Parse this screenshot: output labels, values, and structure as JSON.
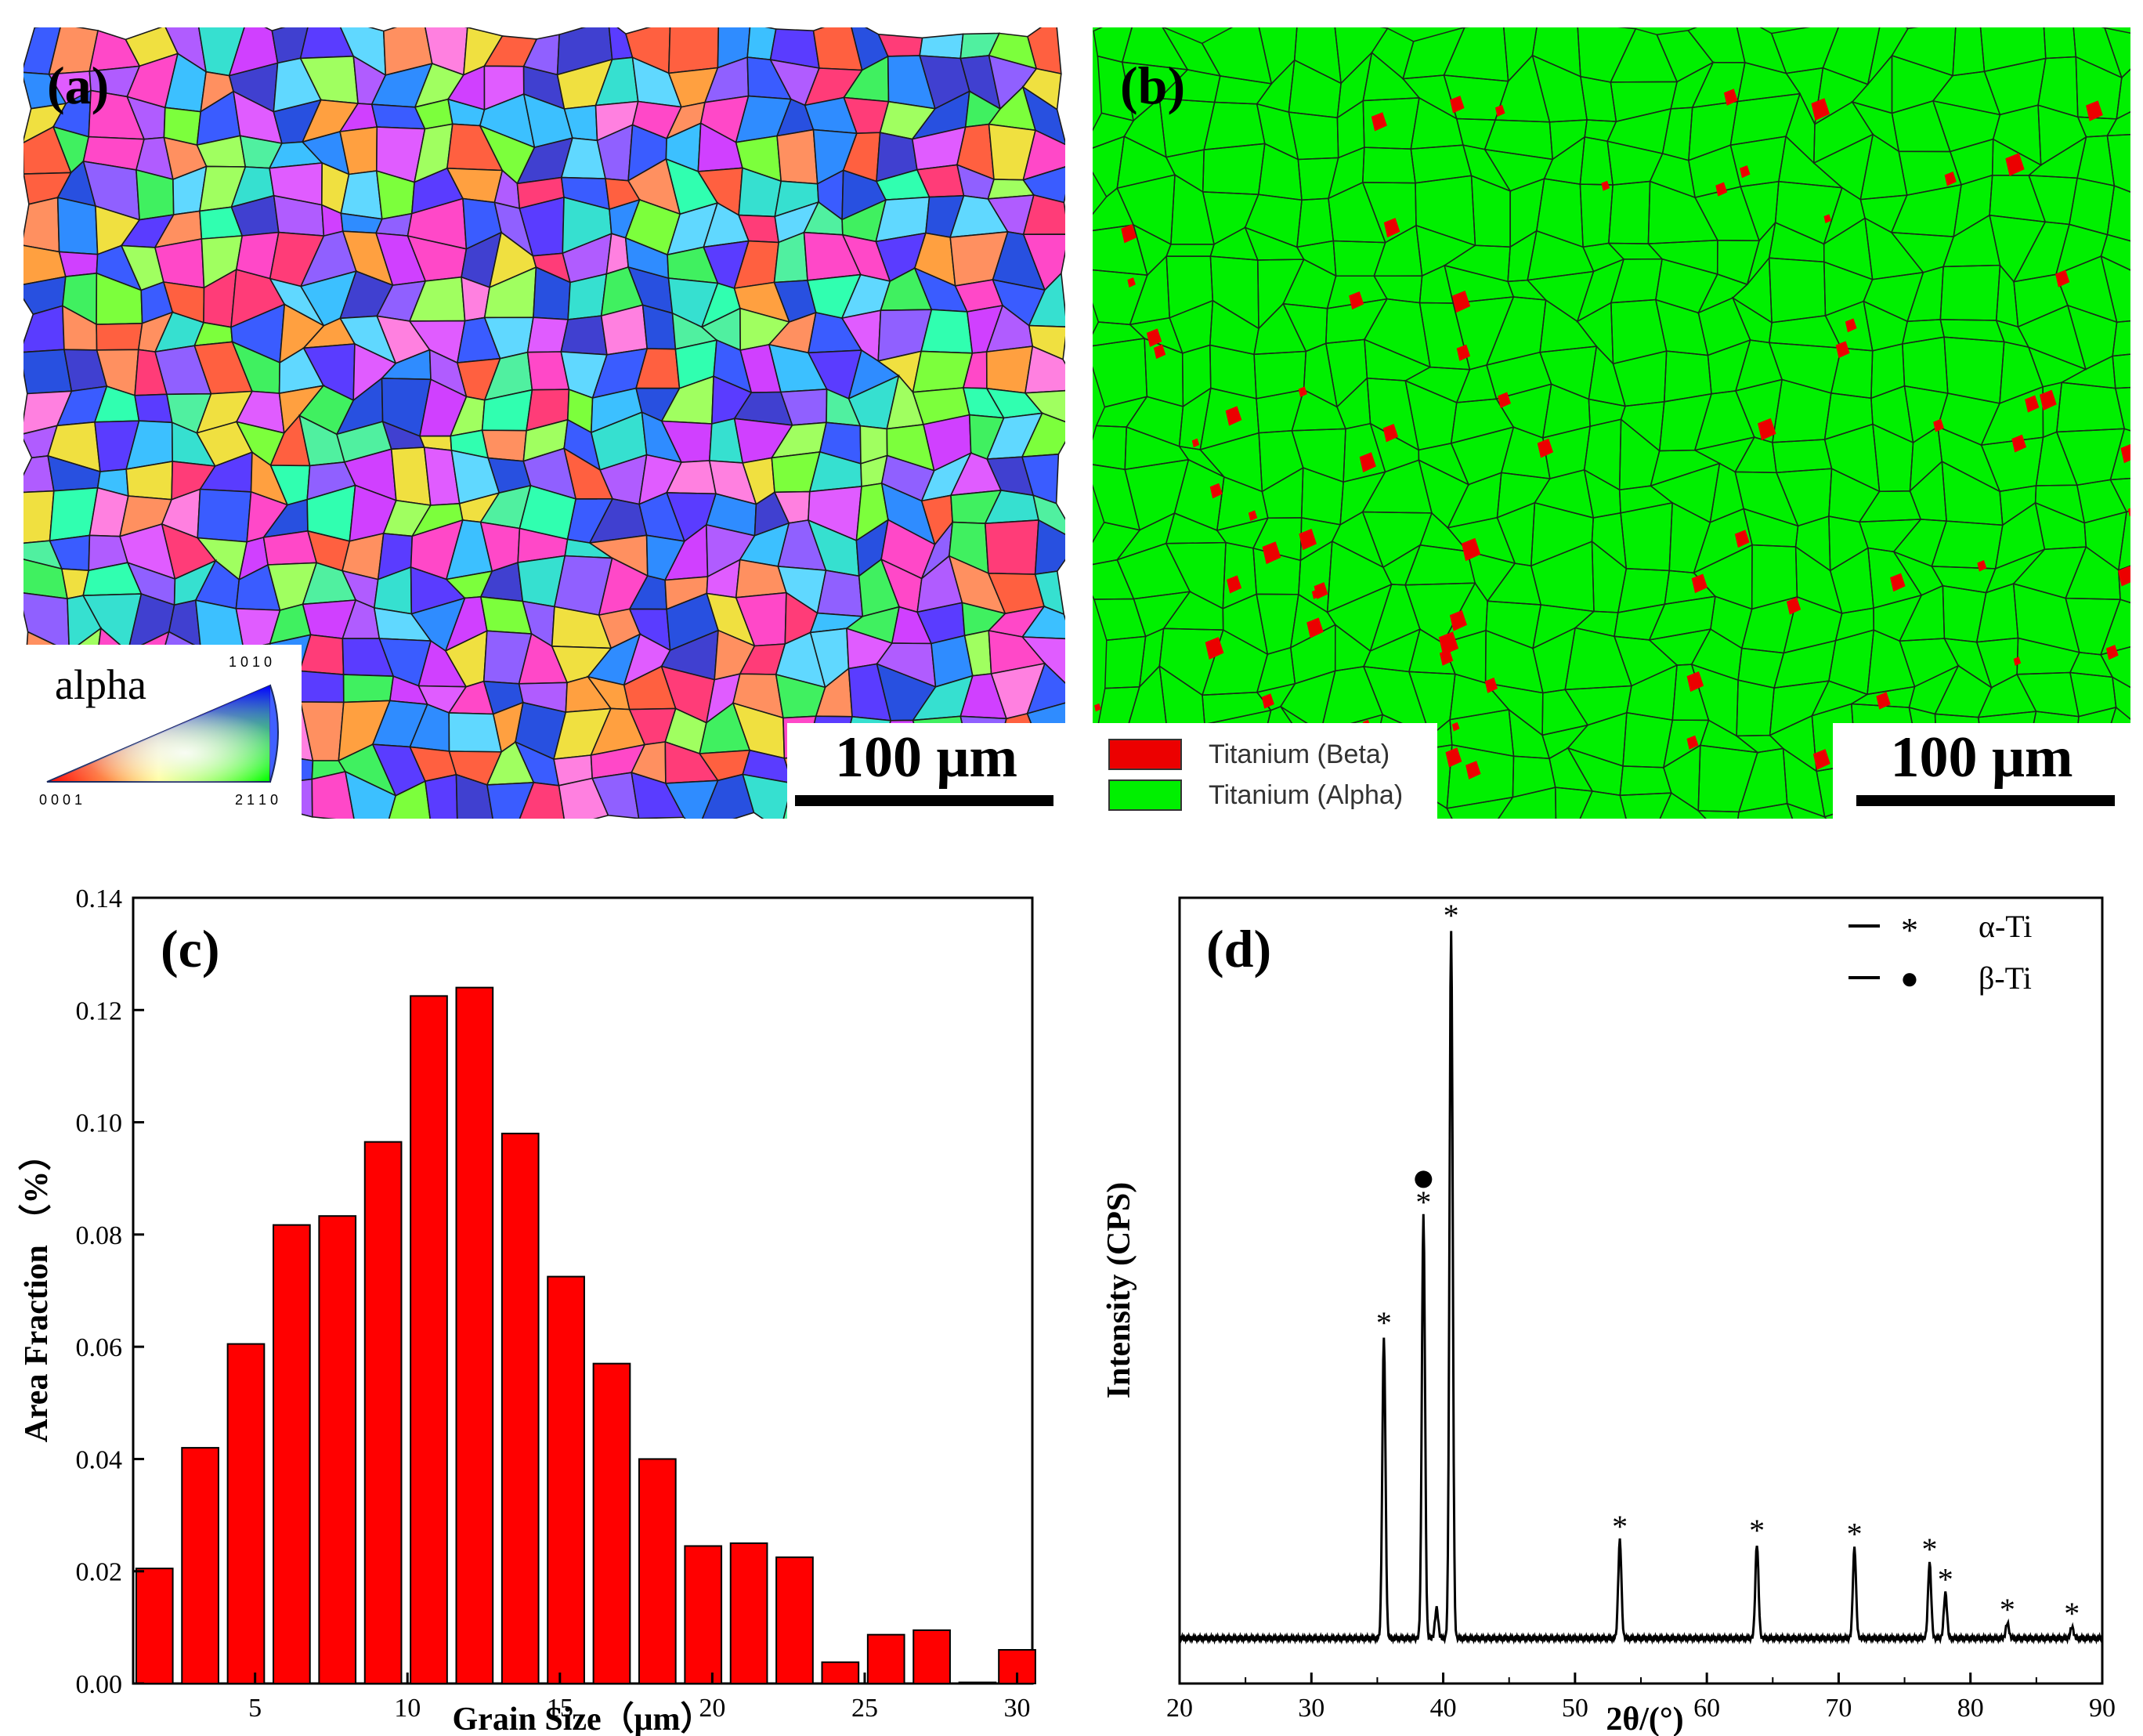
{
  "figure": {
    "panel_a": {
      "letter": "(a)",
      "legend_title": "alpha",
      "corner_top": "1 0 1 0",
      "corner_left": "0 0 0 1",
      "corner_right": "2 1 1 0",
      "scale_label": "100 μm"
    },
    "panel_b": {
      "letter": "(b)",
      "scale_label": "100 μm",
      "legend": [
        {
          "label": "Titanium (Beta)",
          "color": "#ec0000"
        },
        {
          "label": "Titanium (Alpha)",
          "color": "#00f000"
        }
      ]
    }
  },
  "chart_data": [
    {
      "panel": "(c)",
      "type": "bar",
      "xlabel": "Grain Size（μm）",
      "ylabel": "Area Fraction （%）",
      "xlim": [
        1,
        30.5
      ],
      "ylim": [
        0,
        0.14
      ],
      "xticks": [
        5,
        10,
        15,
        20,
        25,
        30
      ],
      "yticks": [
        0.0,
        0.02,
        0.04,
        0.06,
        0.08,
        0.1,
        0.12,
        0.14
      ],
      "ytick_labels": [
        "0.00",
        "0.02",
        "0.04",
        "0.06",
        "0.08",
        "0.10",
        "0.12",
        "0.14"
      ],
      "bar_color": "#ff0000",
      "bar_width": 1.2,
      "x": [
        1.7,
        3.2,
        4.7,
        6.2,
        7.7,
        9.2,
        10.7,
        12.2,
        13.7,
        15.2,
        16.7,
        18.2,
        19.7,
        21.2,
        22.7,
        24.2,
        25.7,
        27.2,
        28.7,
        30.0
      ],
      "values": [
        0.0205,
        0.042,
        0.0605,
        0.0817,
        0.0833,
        0.0965,
        0.1225,
        0.124,
        0.098,
        0.0725,
        0.057,
        0.04,
        0.0245,
        0.025,
        0.0225,
        0.0038,
        0.0087,
        0.0095,
        0.0002,
        0.006
      ]
    },
    {
      "panel": "(d)",
      "type": "line",
      "xlabel": "2θ/(°)",
      "ylabel": "Intensity (CPS)",
      "xlim": [
        20,
        90
      ],
      "ylim": [
        0,
        100
      ],
      "xticks": [
        20,
        30,
        40,
        50,
        60,
        70,
        80,
        90
      ],
      "baseline": 6,
      "peaks": [
        {
          "x": 35.5,
          "y": 46,
          "marker": "*"
        },
        {
          "x": 38.5,
          "y": 62,
          "marker": "*"
        },
        {
          "x": 39.5,
          "y": 10,
          "marker": ""
        },
        {
          "x": 40.6,
          "y": 100,
          "marker": "*"
        },
        {
          "x": 53.4,
          "y": 19,
          "marker": "*"
        },
        {
          "x": 63.8,
          "y": 18.5,
          "marker": "*"
        },
        {
          "x": 71.2,
          "y": 18,
          "marker": "*"
        },
        {
          "x": 76.9,
          "y": 16,
          "marker": "*"
        },
        {
          "x": 78.1,
          "y": 12,
          "marker": "*"
        },
        {
          "x": 82.8,
          "y": 8,
          "marker": "*"
        },
        {
          "x": 87.7,
          "y": 7.5,
          "marker": "*"
        }
      ],
      "beta_marker_x": 38.5,
      "beta_marker_y": 66,
      "legend": [
        {
          "symbol": "*",
          "label": "α-Ti"
        },
        {
          "symbol": "●",
          "label": "β-Ti"
        }
      ]
    }
  ]
}
